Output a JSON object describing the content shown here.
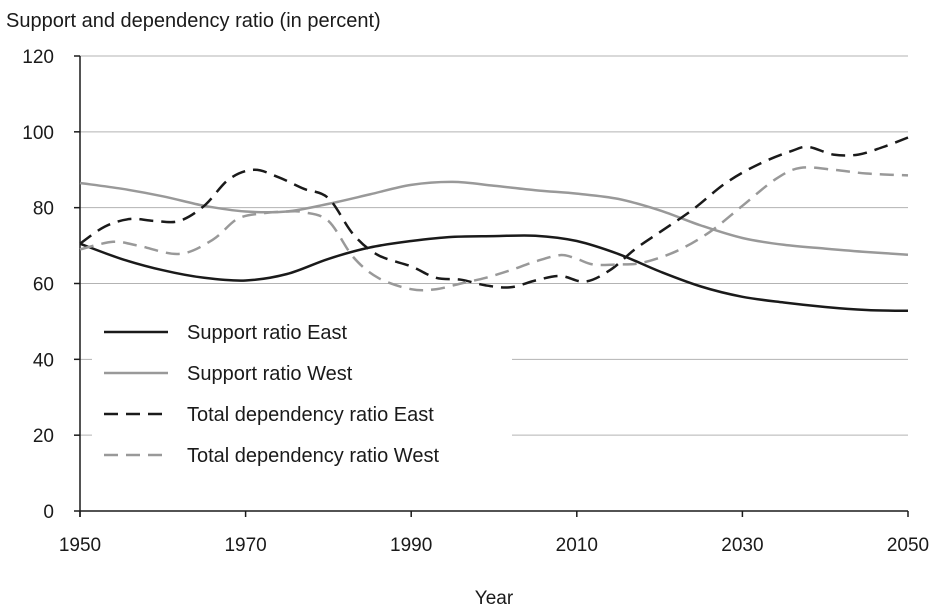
{
  "chart_data": {
    "type": "line",
    "title": "Support and dependency ratio (in percent)",
    "xlabel": "Year",
    "ylabel": "",
    "xlim": [
      1950,
      2050
    ],
    "ylim": [
      0,
      120
    ],
    "x_ticks": [
      1950,
      1970,
      1990,
      2010,
      2030,
      2050
    ],
    "y_ticks": [
      0,
      20,
      40,
      60,
      80,
      100,
      120
    ],
    "grid": "horizontal",
    "legend_position": "left",
    "series": [
      {
        "name": "Support ratio East",
        "color": "#1a1a1a",
        "dash": "solid",
        "x": [
          1950,
          1955,
          1960,
          1965,
          1970,
          1975,
          1980,
          1985,
          1990,
          1995,
          2000,
          2005,
          2010,
          2015,
          2020,
          2025,
          2030,
          2035,
          2040,
          2045,
          2050
        ],
        "y": [
          70.5,
          66.5,
          63.5,
          61.5,
          60.8,
          62.5,
          66.5,
          69.5,
          71.2,
          72.3,
          72.5,
          72.6,
          71.2,
          67.8,
          63.2,
          59.2,
          56.5,
          55,
          53.8,
          53,
          52.8
        ]
      },
      {
        "name": "Support ratio West",
        "color": "#999999",
        "dash": "solid",
        "x": [
          1950,
          1955,
          1960,
          1965,
          1970,
          1975,
          1980,
          1985,
          1990,
          1995,
          2000,
          2005,
          2010,
          2015,
          2020,
          2025,
          2030,
          2035,
          2040,
          2045,
          2050
        ],
        "y": [
          86.5,
          85,
          83,
          80.5,
          79,
          79,
          81,
          83.5,
          86,
          86.8,
          85.8,
          84.6,
          83.7,
          82.3,
          79.3,
          75.3,
          72,
          70.2,
          69.2,
          68.3,
          67.6
        ]
      },
      {
        "name": "Total dependency ratio East",
        "color": "#1a1a1a",
        "dash": "dashed",
        "x": [
          1950,
          1953,
          1956,
          1959,
          1962,
          1965,
          1968,
          1971,
          1974,
          1977,
          1980,
          1983,
          1986,
          1990,
          1993,
          1996,
          1999,
          2002,
          2005,
          2008,
          2011,
          2014,
          2017,
          2020,
          2024,
          2028,
          2032,
          2036,
          2038,
          2041,
          2044,
          2047,
          2050
        ],
        "y": [
          70.5,
          75,
          77,
          76.5,
          76.5,
          80.5,
          87.5,
          90,
          88,
          85,
          82.5,
          73,
          67.5,
          64.5,
          61.5,
          61,
          59.5,
          59,
          60.8,
          62,
          60.5,
          63.5,
          69,
          73.5,
          79.5,
          86.5,
          91.5,
          95,
          96,
          94,
          94,
          96,
          98.5
        ]
      },
      {
        "name": "Total dependency ratio West",
        "color": "#999999",
        "dash": "dashed",
        "x": [
          1950,
          1954,
          1957,
          1962,
          1966,
          1969,
          1972,
          1975,
          1977,
          1980,
          1983,
          1986,
          1990,
          1993,
          1996,
          1999,
          2002,
          2005,
          2008,
          2010,
          2012,
          2015,
          2018,
          2022,
          2026,
          2030,
          2034,
          2037,
          2041,
          2045,
          2050
        ],
        "y": [
          69,
          71,
          70,
          67.8,
          71.5,
          77,
          78.5,
          79,
          78.8,
          76.5,
          67,
          61.5,
          58.5,
          58.5,
          60,
          61.5,
          63.5,
          65.8,
          67.5,
          66.5,
          65,
          65,
          65.5,
          68.5,
          73.5,
          80.5,
          87.5,
          90.5,
          90,
          89,
          88.5
        ]
      }
    ]
  }
}
